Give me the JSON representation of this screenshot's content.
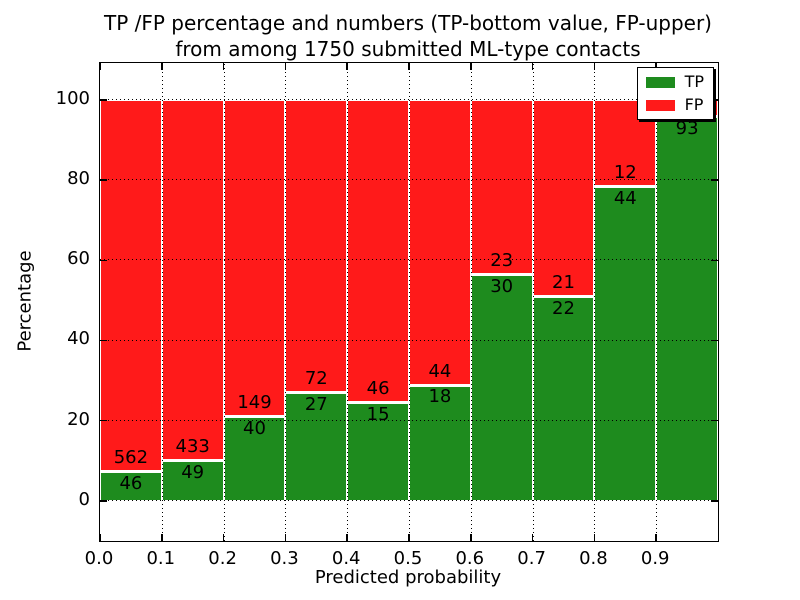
{
  "title": {
    "line1": "TP /FP percentage and numbers (TP-bottom value, FP-upper)",
    "line2": "from among 1750 submitted ML-type contacts"
  },
  "chart_data": {
    "type": "bar",
    "subtype": "stacked_percentage",
    "title": "TP /FP percentage and numbers (TP-bottom value, FP-upper) from among 1750 submitted ML-type contacts",
    "xlabel": "Predicted probability",
    "ylabel": "Percentage",
    "xlim": [
      0.0,
      1.0
    ],
    "ylim": [
      -10,
      109.2
    ],
    "xticks": [
      0.0,
      0.1,
      0.2,
      0.3,
      0.4,
      0.5,
      0.6,
      0.7,
      0.8,
      0.9
    ],
    "xtick_labels": [
      "0.0",
      "0.1",
      "0.2",
      "0.3",
      "0.4",
      "0.5",
      "0.6",
      "0.7",
      "0.8",
      "0.9"
    ],
    "yticks": [
      0,
      20,
      40,
      60,
      80,
      100
    ],
    "ytick_labels": [
      "0",
      "20",
      "40",
      "60",
      "80",
      "100"
    ],
    "grid_style": "dotted",
    "total_contacts": 1750,
    "colors": {
      "tp": "#1e8b1e",
      "fp": "#ff1a1a"
    },
    "legend": {
      "position": "upper-right",
      "items": [
        {
          "label": "TP",
          "color": "#1e8b1e"
        },
        {
          "label": "FP",
          "color": "#ff1a1a"
        }
      ]
    },
    "bins": [
      {
        "x0": 0.0,
        "x1": 0.1,
        "tp": 46,
        "fp": 562,
        "tp_pct": 7.57,
        "tp_label": "46",
        "fp_label": "562"
      },
      {
        "x0": 0.1,
        "x1": 0.2,
        "tp": 49,
        "fp": 433,
        "tp_pct": 10.17,
        "tp_label": "49",
        "fp_label": "433"
      },
      {
        "x0": 0.2,
        "x1": 0.3,
        "tp": 40,
        "fp": 149,
        "tp_pct": 21.16,
        "tp_label": "40",
        "fp_label": "149"
      },
      {
        "x0": 0.3,
        "x1": 0.4,
        "tp": 27,
        "fp": 72,
        "tp_pct": 27.27,
        "tp_label": "27",
        "fp_label": "72"
      },
      {
        "x0": 0.4,
        "x1": 0.5,
        "tp": 15,
        "fp": 46,
        "tp_pct": 24.59,
        "tp_label": "15",
        "fp_label": "46"
      },
      {
        "x0": 0.5,
        "x1": 0.6,
        "tp": 18,
        "fp": 44,
        "tp_pct": 29.03,
        "tp_label": "18",
        "fp_label": "44"
      },
      {
        "x0": 0.6,
        "x1": 0.7,
        "tp": 30,
        "fp": 23,
        "tp_pct": 56.6,
        "tp_label": "30",
        "fp_label": "23"
      },
      {
        "x0": 0.7,
        "x1": 0.8,
        "tp": 22,
        "fp": 21,
        "tp_pct": 51.16,
        "tp_label": "22",
        "fp_label": "21"
      },
      {
        "x0": 0.8,
        "x1": 0.9,
        "tp": 44,
        "fp": 12,
        "tp_pct": 78.57,
        "tp_label": "44",
        "fp_label": "12"
      },
      {
        "x0": 0.9,
        "x1": 1.0,
        "tp": 93,
        "fp": 4,
        "tp_pct": 95.88,
        "tp_label": "93",
        "fp_label": ""
      }
    ]
  }
}
